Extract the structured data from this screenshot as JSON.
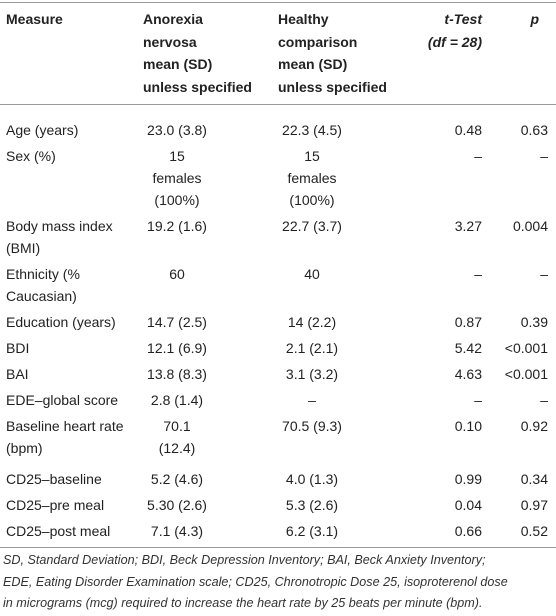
{
  "table": {
    "header": [
      [
        "Measure"
      ],
      [
        "Anorexia",
        "nervosa",
        "mean (SD)",
        "unless specified"
      ],
      [
        "Healthy",
        "comparison",
        "mean (SD)",
        "unless specified"
      ],
      [
        "t-Test",
        "(df = 28)"
      ],
      [
        "p"
      ]
    ],
    "rows": [
      [
        [
          "Age (years)"
        ],
        [
          "23.0 (3.8)"
        ],
        [
          "22.3 (4.5)"
        ],
        [
          "0.48"
        ],
        [
          "0.63"
        ]
      ],
      [
        [
          "Sex (%)"
        ],
        [
          "15",
          "females",
          "(100%)"
        ],
        [
          "15",
          "females",
          "(100%)"
        ],
        [
          "–"
        ],
        [
          "–"
        ]
      ],
      [
        [
          "Body mass index",
          "(BMI)"
        ],
        [
          "19.2 (1.6)"
        ],
        [
          "22.7 (3.7)"
        ],
        [
          "3.27"
        ],
        [
          "0.004"
        ]
      ],
      [
        [
          "Ethnicity (%",
          "Caucasian)"
        ],
        [
          "60"
        ],
        [
          "40"
        ],
        [
          "–"
        ],
        [
          "–"
        ]
      ],
      [
        [
          "Education (years)"
        ],
        [
          "14.7 (2.5)"
        ],
        [
          "14 (2.2)"
        ],
        [
          "0.87"
        ],
        [
          "0.39"
        ]
      ],
      [
        [
          "BDI"
        ],
        [
          "12.1 (6.9)"
        ],
        [
          "2.1 (2.1)"
        ],
        [
          "5.42"
        ],
        [
          "<0.001"
        ]
      ],
      [
        [
          "BAI"
        ],
        [
          "13.8 (8.3)"
        ],
        [
          "3.1 (3.2)"
        ],
        [
          "4.63"
        ],
        [
          "<0.001"
        ]
      ],
      [
        [
          "EDE–global score"
        ],
        [
          "2.8 (1.4)"
        ],
        [
          "–"
        ],
        [
          "–"
        ],
        [
          "–"
        ]
      ],
      [
        [
          "Baseline heart rate",
          "(bpm)"
        ],
        [
          "70.1",
          "(12.4)"
        ],
        [
          "70.5 (9.3)"
        ],
        [
          "0.10"
        ],
        [
          "0.92"
        ]
      ],
      [
        [
          "CD25–baseline"
        ],
        [
          "5.2 (4.6)"
        ],
        [
          "4.0 (1.3)"
        ],
        [
          "0.99"
        ],
        [
          "0.34"
        ]
      ],
      [
        [
          "CD25–pre meal"
        ],
        [
          "5.30 (2.6)"
        ],
        [
          "5.3 (2.6)"
        ],
        [
          "0.04"
        ],
        [
          "0.97"
        ]
      ],
      [
        [
          "CD25–post meal"
        ],
        [
          "7.1 (4.3)"
        ],
        [
          "6.2 (3.1)"
        ],
        [
          "0.66"
        ],
        [
          "0.52"
        ]
      ]
    ],
    "footnote": [
      "SD, Standard Deviation; BDI, Beck Depression Inventory; BAI, Beck Anxiety Inventory;",
      "EDE, Eating Disorder Examination scale; CD25, Chronotropic Dose 25, isoproterenol dose",
      "in micrograms (mcg) required to increase the heart rate by 25 beats per minute (bpm)."
    ]
  }
}
